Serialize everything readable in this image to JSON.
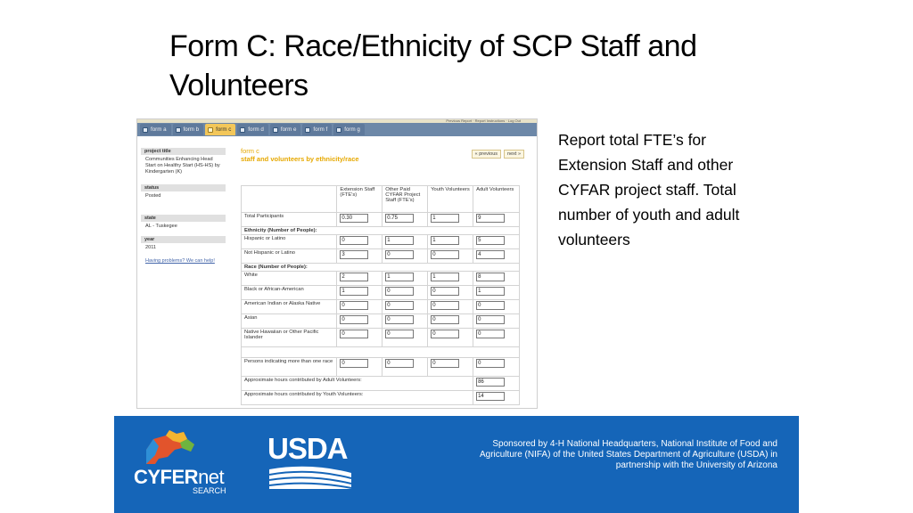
{
  "slide": {
    "title": "Form C: Race/Ethnicity of SCP Staff and Volunteers",
    "side_text": "Report total FTE’s for Extension Staff and other CYFAR project staff. Total number of youth and adult volunteers"
  },
  "app": {
    "top_links": "Previous Report · Report Instructions · Log Out",
    "tabs": [
      {
        "label": "form a",
        "active": false
      },
      {
        "label": "form b",
        "active": false
      },
      {
        "label": "form c",
        "active": true
      },
      {
        "label": "form d",
        "active": false
      },
      {
        "label": "form e",
        "active": false
      },
      {
        "label": "form f",
        "active": false
      },
      {
        "label": "form g",
        "active": false
      }
    ],
    "sidebar": {
      "project_title_label": "project title",
      "project_title_value": "Communities Enhancing Head Start on Healthy Start (HS-HS) by Kindergarten (K)",
      "status_label": "status",
      "status_value": "Posted",
      "state_label": "state",
      "state_value": "AL - Tuskegee",
      "year_label": "year",
      "year_value": "2011",
      "help_link": "Having problems? We can help!"
    },
    "main": {
      "form_label": "form c",
      "form_subtitle": "staff and volunteers by ethnicity/race",
      "previous_button": "« previous",
      "next_button": "next »",
      "columns": [
        "Extension Staff (FTE's)",
        "Other Paid CYFAR Project Staff (FTE's)",
        "Youth Volunteers",
        "Adult Volunteers"
      ],
      "rows": [
        {
          "label": "Total Participants",
          "values": [
            "0.30",
            "0.75",
            "1",
            "9"
          ]
        },
        {
          "section": "Ethnicity (Number of People):"
        },
        {
          "label": "Hispanic or Latino",
          "values": [
            "0",
            "1",
            "1",
            "5"
          ]
        },
        {
          "label": "Not Hispanic or Latino",
          "values": [
            "3",
            "0",
            "0",
            "4"
          ]
        },
        {
          "section": "Race (Number of People):"
        },
        {
          "label": "White",
          "values": [
            "2",
            "1",
            "1",
            "8"
          ]
        },
        {
          "label": "Black or African-American",
          "values": [
            "1",
            "0",
            "0",
            "1"
          ]
        },
        {
          "label": "American Indian or Alaska Native",
          "values": [
            "0",
            "0",
            "0",
            "0"
          ]
        },
        {
          "label": "Asian",
          "values": [
            "0",
            "0",
            "0",
            "0"
          ]
        },
        {
          "label": "Native Hawaiian or Other Pacific Islander",
          "values": [
            "0",
            "0",
            "0",
            "0"
          ]
        },
        {
          "label": "Persons indicating more than one race",
          "values": [
            "0",
            "0",
            "0",
            "0"
          ]
        }
      ],
      "adult_hours_label": "Approximate hours contributed by Adult Volunteers:",
      "adult_hours_value": "86",
      "youth_hours_label": "Approximate hours contributed by Youth Volunteers:",
      "youth_hours_value": "14"
    }
  },
  "footer": {
    "cyfer": "CYFER",
    "net": "net",
    "search": "SEARCH",
    "usda": "USDA",
    "sponsor": "Sponsored by 4-H National Headquarters, National Institute of Food and Agriculture (NIFA) of the United States Department of Agriculture (USDA) in partnership with the University of Arizona",
    "background_color": "#1565b8"
  }
}
